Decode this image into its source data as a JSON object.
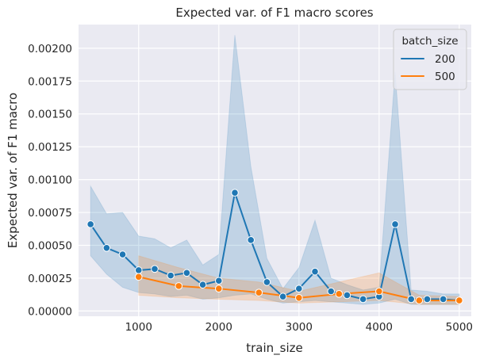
{
  "chart_data": {
    "type": "line",
    "title": "Expected var. of F1 macro scores",
    "xlabel": "train_size",
    "ylabel": "Expected var. of F1 macro",
    "xlim": [
      250,
      5150
    ],
    "ylim": [
      -4e-05,
      0.00218
    ],
    "xticks": [
      1000,
      2000,
      3000,
      4000,
      5000
    ],
    "yticks": [
      0.0,
      0.00025,
      0.0005,
      0.00075,
      0.001,
      0.00125,
      0.0015,
      0.00175,
      0.002
    ],
    "ytick_labels": [
      "0.00000",
      "0.00025",
      "0.00050",
      "0.00075",
      "0.00100",
      "0.00125",
      "0.00150",
      "0.00175",
      "0.00200"
    ],
    "grid": true,
    "legend": {
      "title": "batch_size",
      "position": "top-right"
    },
    "series": [
      {
        "name": "200",
        "color": "#1f77b4",
        "x": [
          400,
          600,
          800,
          1000,
          1200,
          1400,
          1600,
          1800,
          2000,
          2200,
          2400,
          2600,
          2800,
          3000,
          3200,
          3400,
          3600,
          3800,
          4000,
          4200,
          4400,
          4600,
          4800,
          5000
        ],
        "y": [
          0.00066,
          0.00048,
          0.00043,
          0.00031,
          0.00032,
          0.00027,
          0.00029,
          0.0002,
          0.00023,
          0.0009,
          0.00054,
          0.00022,
          0.00011,
          0.00017,
          0.0003,
          0.00015,
          0.00012,
          9e-05,
          0.00011,
          0.00066,
          9e-05,
          9e-05,
          9e-05,
          8e-05
        ],
        "ci_low": [
          0.00042,
          0.00028,
          0.00018,
          0.00014,
          0.00013,
          0.00011,
          0.00012,
          9e-05,
          0.0001,
          0.00012,
          0.00013,
          9e-05,
          6e-05,
          7e-05,
          8e-05,
          7e-05,
          6e-05,
          5e-05,
          6e-05,
          9e-05,
          5e-05,
          5e-05,
          5e-05,
          5e-05
        ],
        "ci_high": [
          0.00095,
          0.00074,
          0.00075,
          0.00057,
          0.00055,
          0.00048,
          0.00054,
          0.00035,
          0.00043,
          0.0021,
          0.0011,
          0.0004,
          0.00017,
          0.00033,
          0.00069,
          0.00025,
          0.0002,
          0.00016,
          0.00018,
          0.00182,
          0.00016,
          0.00015,
          0.00013,
          0.00013
        ]
      },
      {
        "name": "500",
        "color": "#ff7f0e",
        "x": [
          1000,
          1500,
          2000,
          2500,
          3000,
          3500,
          4000,
          4500,
          5000
        ],
        "y": [
          0.00026,
          0.00019,
          0.00017,
          0.00014,
          0.0001,
          0.00013,
          0.00015,
          8e-05,
          8e-05
        ],
        "ci_low": [
          0.00012,
          0.0001,
          9e-05,
          8e-05,
          6e-05,
          7e-05,
          8e-05,
          5e-05,
          5e-05
        ],
        "ci_high": [
          0.00042,
          0.00033,
          0.00025,
          0.00022,
          0.00015,
          0.00022,
          0.00029,
          0.00012,
          0.00011
        ]
      }
    ]
  }
}
